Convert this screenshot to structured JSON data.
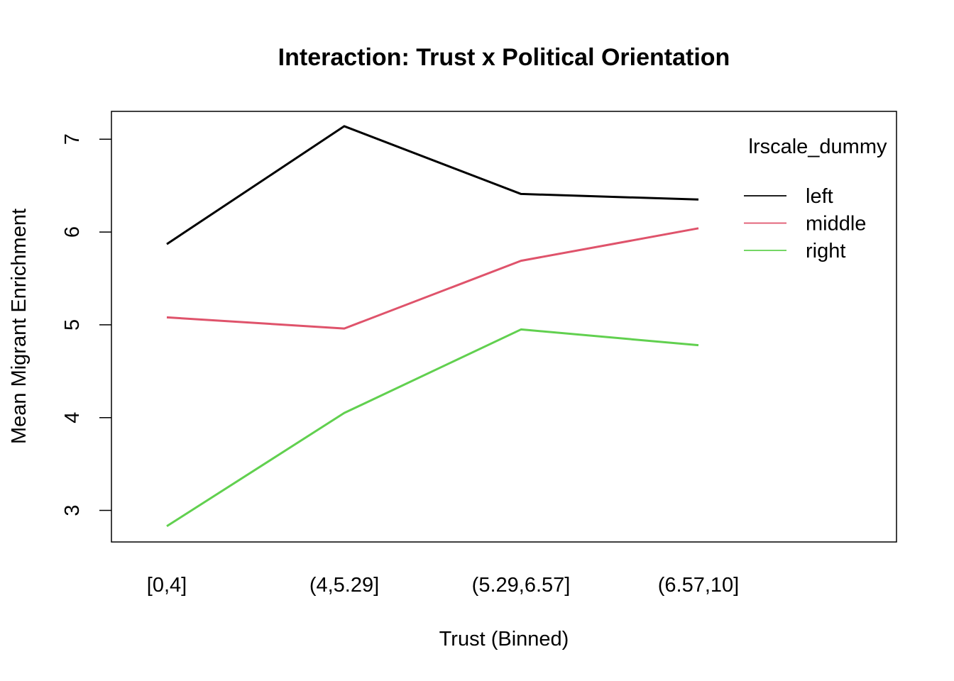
{
  "chart_data": {
    "type": "line",
    "title": "Interaction: Trust x Political Orientation",
    "xlabel": "Trust (Binned)",
    "ylabel": "Mean Migrant Enrichment",
    "categories": [
      "[0,4]",
      "(4,5.29]",
      "(5.29,6.57]",
      "(6.57,10]"
    ],
    "y_ticks": [
      "3",
      "4",
      "5",
      "6",
      "7"
    ],
    "ylim": [
      2.66,
      7.3
    ],
    "legend": {
      "title": "lrscale_dummy",
      "placement": "top-right inside"
    },
    "series": [
      {
        "name": "left",
        "color": "#000000",
        "values": [
          5.87,
          7.14,
          6.41,
          6.35
        ]
      },
      {
        "name": "middle",
        "color": "#DF536B",
        "values": [
          5.08,
          4.96,
          5.69,
          6.04
        ]
      },
      {
        "name": "right",
        "color": "#61D04F",
        "values": [
          2.83,
          4.05,
          4.95,
          4.78
        ]
      }
    ]
  }
}
